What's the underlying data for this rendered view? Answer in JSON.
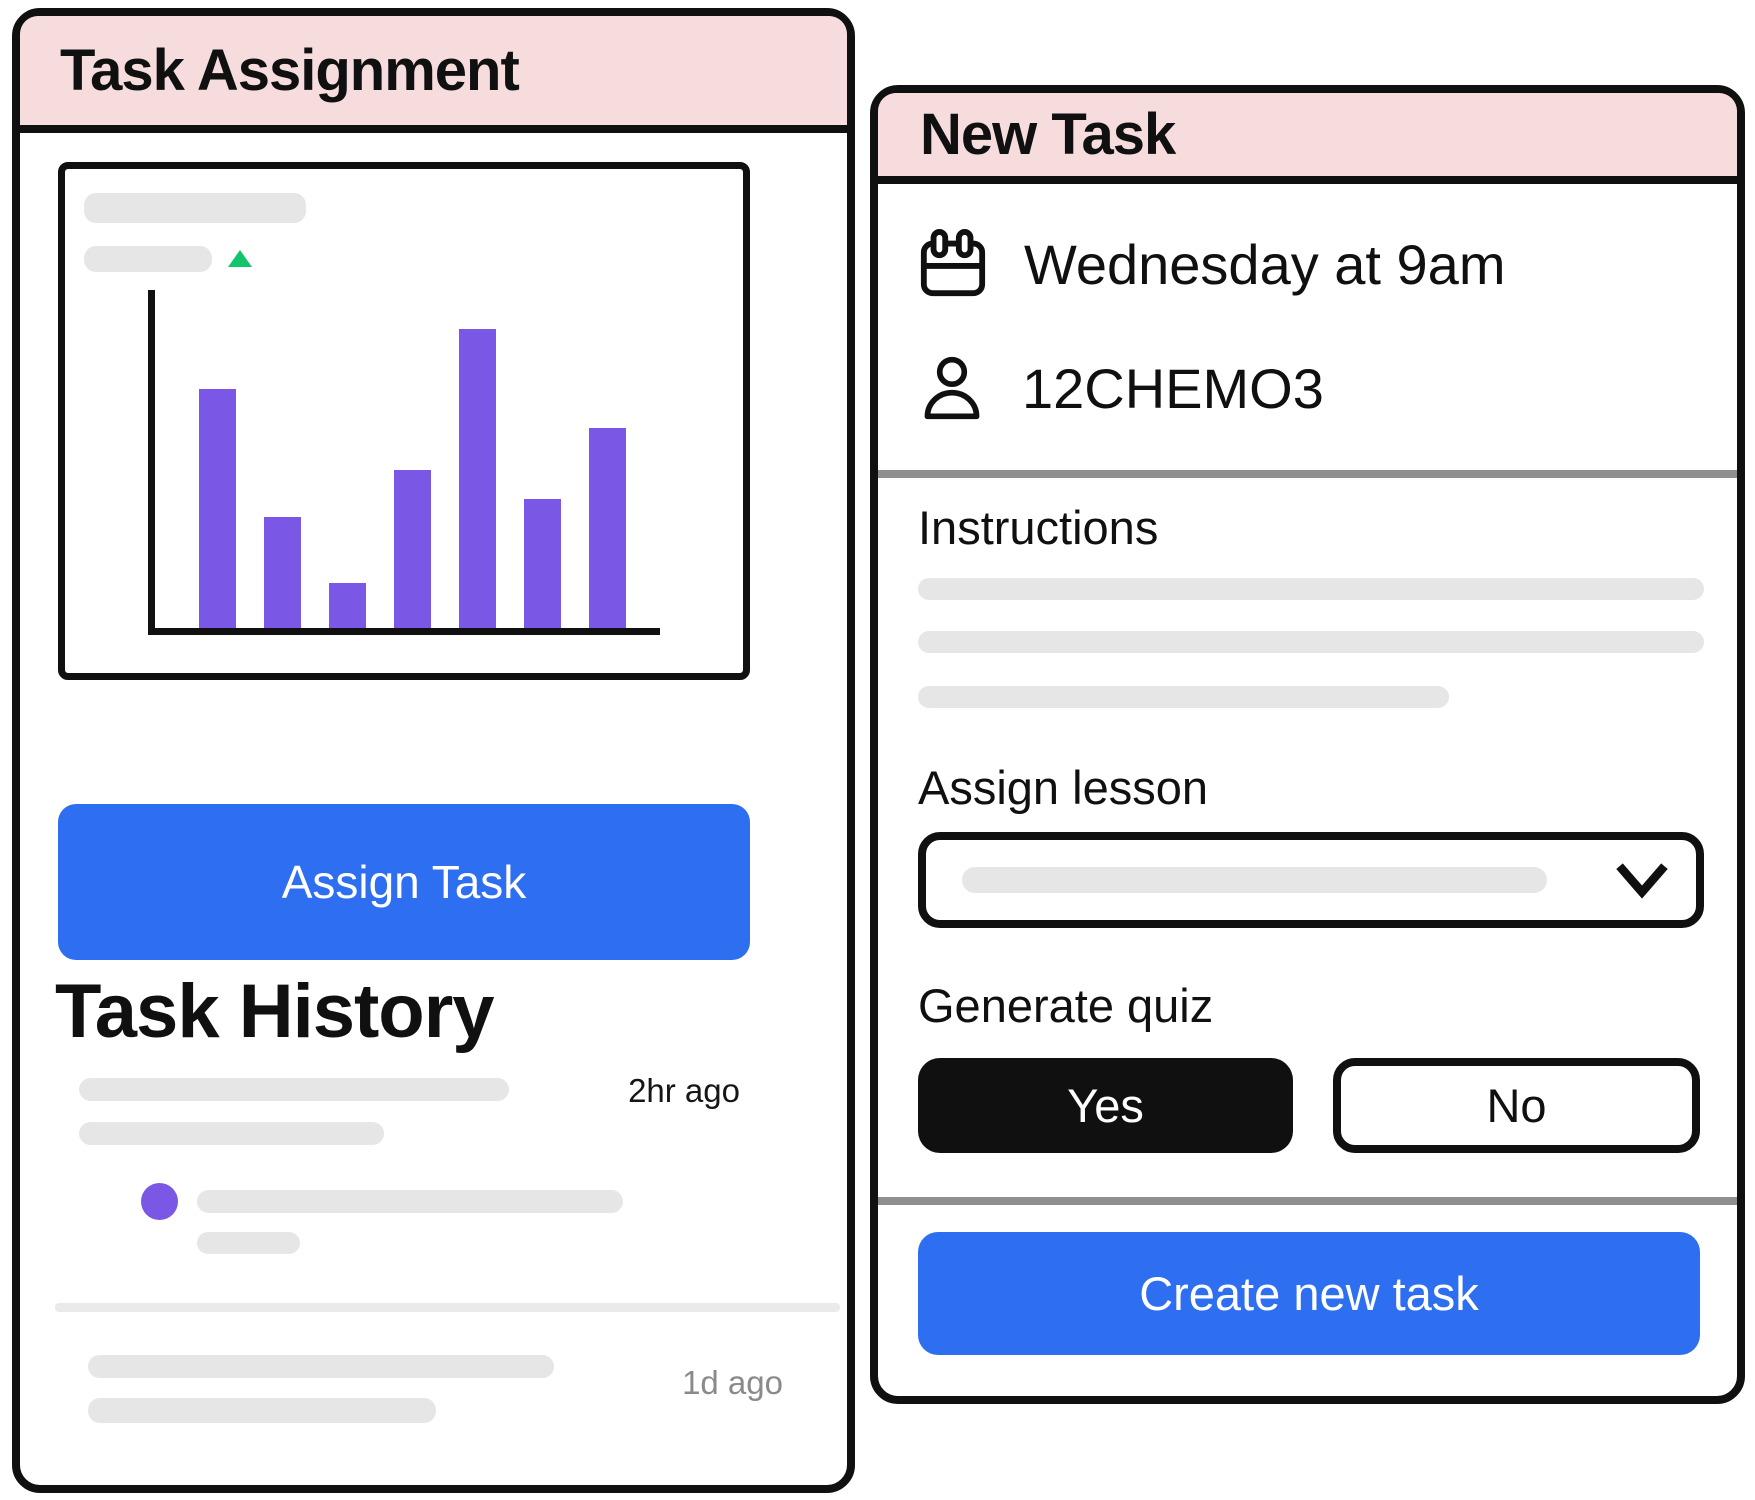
{
  "colors": {
    "ink": "#101010",
    "pink": "#f7dcdd",
    "blue": "#2e6ef0",
    "purple": "#7b57e6",
    "green": "#14c46d",
    "placeholder": "#e6e6e6",
    "divider_light": "#eaeaea",
    "divider_dark": "#8f8f8f",
    "muted": "#8a8a8a"
  },
  "left_panel": {
    "title": "Task Assignment",
    "assign_button_label": "Assign Task",
    "history": {
      "heading": "Task History",
      "items": [
        {
          "timestamp": "2hr ago"
        },
        {
          "timestamp": ""
        },
        {
          "timestamp": "1d ago"
        }
      ]
    }
  },
  "right_panel": {
    "title": "New Task",
    "schedule_text": "Wednesday at 9am",
    "class_code": "12CHEMO3",
    "instructions_label": "Instructions",
    "assign_lesson_label": "Assign lesson",
    "generate_quiz_label": "Generate quiz",
    "quiz_options": {
      "yes": "Yes",
      "no": "No"
    },
    "create_button_label": "Create new task"
  },
  "chart_data": {
    "type": "bar",
    "categories": [
      "",
      "",
      "",
      "",
      "",
      "",
      ""
    ],
    "values": [
      80,
      37,
      15,
      53,
      100,
      43,
      67
    ],
    "title": "",
    "xlabel": "",
    "ylabel": "",
    "ylim": [
      0,
      100
    ],
    "bar_color": "#7b57e6",
    "legend": false,
    "grid": false
  }
}
